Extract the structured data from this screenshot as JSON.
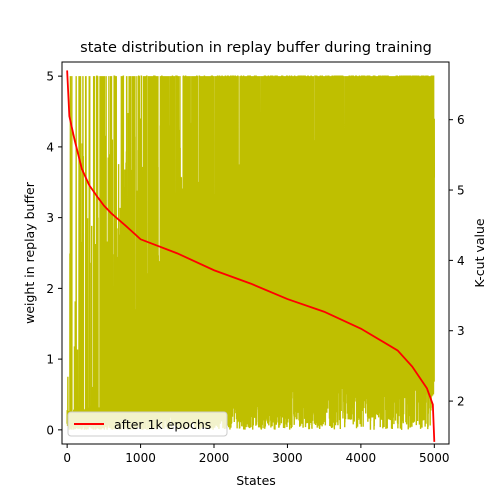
{
  "chart_data": {
    "type": "line",
    "title": "state distribution in replay buffer during training",
    "xlabel": "States",
    "ylabel_left": "weight in replay buffer",
    "ylabel_right": "K-cut value",
    "xlim": [
      -70,
      5200
    ],
    "ylim_left": [
      -0.2,
      5.2
    ],
    "ylim_right": [
      1.39,
      6.82
    ],
    "x_ticks": [
      0,
      1000,
      2000,
      3000,
      4000,
      5000
    ],
    "y_left_ticks": [
      0,
      1,
      2,
      3,
      4,
      5
    ],
    "y_right_ticks": [
      2,
      3,
      4,
      5,
      6
    ],
    "grid": false,
    "legend": {
      "position": "lower-left",
      "entries": [
        "after 1k epochs"
      ]
    },
    "series": [
      {
        "name": "",
        "axis": "left",
        "color": "#bfbf00",
        "style": "noisy-line",
        "description_values": {
          "x_range": [
            0,
            5000
          ],
          "approx_samples": 5000,
          "min": 0,
          "max": 5.0,
          "spike_density_profile": [
            [
              0,
              0.05
            ],
            [
              500,
              0.15
            ],
            [
              1000,
              0.3
            ],
            [
              2000,
              0.5
            ],
            [
              3000,
              0.65
            ],
            [
              4000,
              0.75
            ],
            [
              5000,
              0.85
            ]
          ],
          "notable_points": [
            [
              10,
              0.75
            ],
            [
              60,
              1.0
            ],
            [
              100,
              1.18
            ],
            [
              180,
              5.0
            ],
            [
              220,
              3.87
            ],
            [
              300,
              3.0
            ],
            [
              420,
              3.0
            ],
            [
              480,
              5.0
            ],
            [
              560,
              3.85
            ],
            [
              700,
              1.97
            ],
            [
              800,
              2.53
            ]
          ]
        }
      },
      {
        "name": "after 1k epochs",
        "axis": "right",
        "color": "#ff0000",
        "points": [
          [
            0,
            6.7
          ],
          [
            30,
            6.05
          ],
          [
            100,
            5.72
          ],
          [
            200,
            5.3
          ],
          [
            300,
            5.07
          ],
          [
            400,
            4.92
          ],
          [
            500,
            4.78
          ],
          [
            600,
            4.67
          ],
          [
            800,
            4.49
          ],
          [
            1000,
            4.3
          ],
          [
            1500,
            4.1
          ],
          [
            2000,
            3.86
          ],
          [
            2500,
            3.67
          ],
          [
            3000,
            3.45
          ],
          [
            3500,
            3.27
          ],
          [
            4000,
            3.03
          ],
          [
            4500,
            2.72
          ],
          [
            4700,
            2.49
          ],
          [
            4900,
            2.18
          ],
          [
            4980,
            1.95
          ],
          [
            5000,
            1.42
          ]
        ]
      }
    ]
  }
}
